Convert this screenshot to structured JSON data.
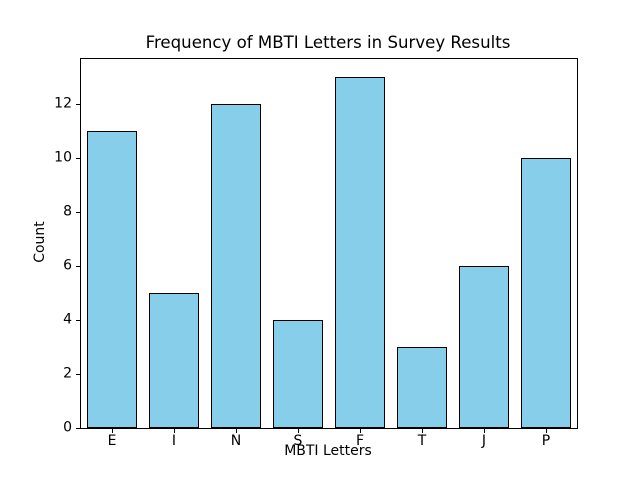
{
  "chart_data": {
    "type": "bar",
    "title": "Frequency of MBTI Letters in Survey Results",
    "xlabel": "MBTI Letters",
    "ylabel": "Count",
    "categories": [
      "E",
      "I",
      "N",
      "S",
      "F",
      "T",
      "J",
      "P"
    ],
    "values": [
      11,
      5,
      12,
      4,
      13,
      3,
      6,
      10
    ],
    "yticks": [
      0,
      2,
      4,
      6,
      8,
      10,
      12
    ],
    "ylim": [
      0,
      13.65
    ],
    "grid": false,
    "legend": null,
    "bar_color": "#87CEEB",
    "bar_edge_color": "#000000",
    "text_color": "#000000",
    "background_color": "#FFFFFF"
  }
}
